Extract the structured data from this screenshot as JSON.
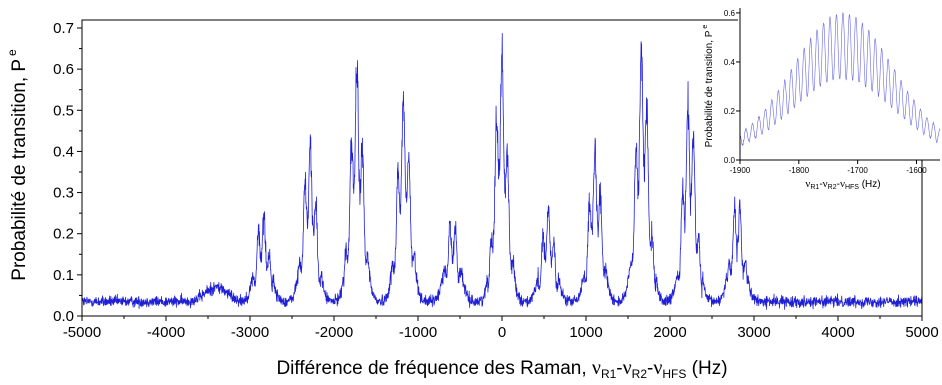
{
  "chart_data": [
    {
      "type": "line",
      "title": "",
      "xlabel": {
        "main": "Différence de fréquence des Raman, ",
        "sym1": "ν",
        "sub1": "R1",
        "dash1": "-",
        "sym2": "ν",
        "sub2": "R2",
        "dash2": "-",
        "sym3": "ν",
        "sub3": "HFS",
        "unit": " (Hz)"
      },
      "ylabel": {
        "main": "Probabilité de transition, P",
        "sub": "e"
      },
      "xlim": [
        -5000,
        5000
      ],
      "ylim": [
        0,
        0.7
      ],
      "xticks": [
        -5000,
        -4000,
        -3000,
        -2000,
        -1000,
        0,
        1000,
        2000,
        3000,
        4000,
        5000
      ],
      "xtick_labels": [
        "-5000",
        "-4000",
        "-3000",
        "-2000",
        "-1000",
        "0",
        "1000",
        "2000",
        "3000",
        "4000",
        "5000"
      ],
      "yticks": [
        0,
        0.1,
        0.2,
        0.3,
        0.4,
        0.5,
        0.6,
        0.7
      ],
      "ytick_labels": [
        "0.0",
        "0.1",
        "0.2",
        "0.3",
        "0.4",
        "0.5",
        "0.6",
        "0.7"
      ],
      "line_color": "#1f1fd6",
      "grid": false,
      "series": [
        {
          "baseline": 0.035,
          "x": [
            -3400,
            -2850,
            -2290,
            -1730,
            -1170,
            -590,
            -10,
            550,
            1110,
            1670,
            2230,
            2800
          ],
          "y": [
            0.07,
            0.25,
            0.42,
            0.6,
            0.53,
            0.24,
            0.64,
            0.26,
            0.4,
            0.66,
            0.53,
            0.28
          ]
        }
      ]
    },
    {
      "type": "line",
      "title": "",
      "xlabel": {
        "sym1": "ν",
        "sub1": "R1",
        "dash1": "-",
        "sym2": "ν",
        "sub2": "R2",
        "dash2": "-",
        "sym3": "ν",
        "sub3": "HFS",
        "unit": " (Hz)"
      },
      "ylabel": {
        "main": "Probabilité de transition, P",
        "sub": "e"
      },
      "xlim": [
        -1900,
        -1560
      ],
      "ylim": [
        0,
        0.62
      ],
      "xticks": [
        -1900,
        -1800,
        -1700,
        -1600
      ],
      "xtick_labels": [
        "-1900",
        "-1800",
        "-1700",
        "-1600"
      ],
      "yticks": [
        0,
        0.2,
        0.4,
        0.6
      ],
      "ytick_labels": [
        "0.0",
        "0.2",
        "0.4",
        "0.6"
      ],
      "line_color": "#6a6ae0",
      "grid": false,
      "series": [
        {
          "peak_center": -1725,
          "peak_value": 0.6,
          "fringe_period": 11
        }
      ]
    }
  ]
}
